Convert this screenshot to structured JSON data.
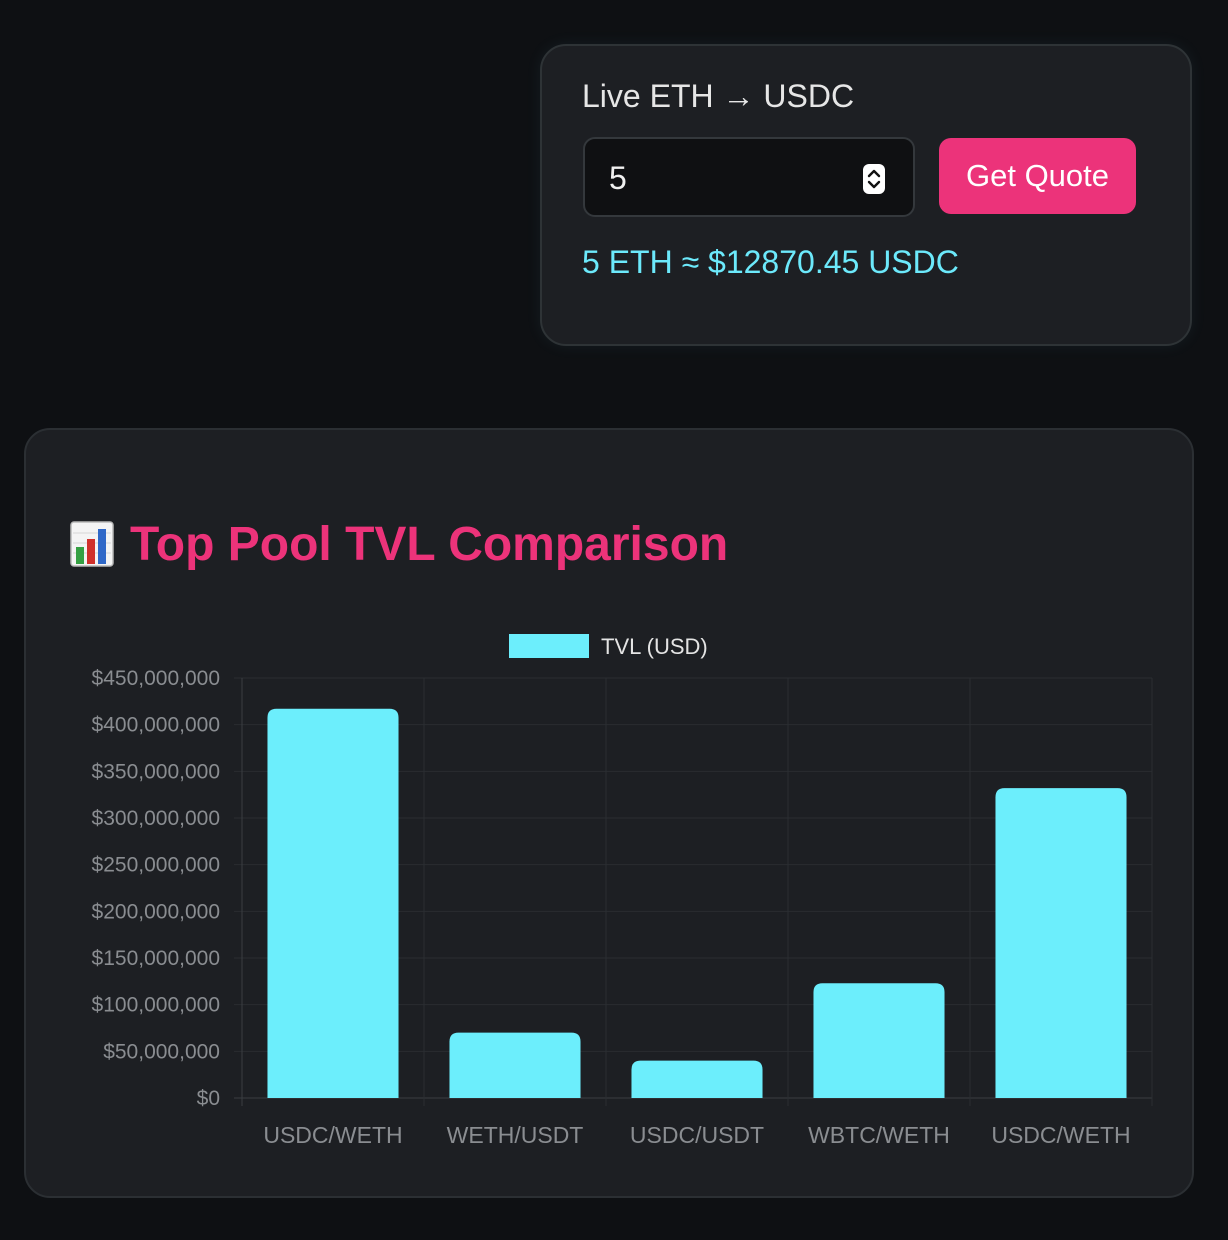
{
  "quote": {
    "title": "Live ETH → USDC",
    "amount": "5",
    "button_label": "Get Quote",
    "result": "5 ETH ≈ $12870.45 USDC"
  },
  "chart_section": {
    "icon": "bar-chart-icon",
    "title": "Top Pool TVL Comparison"
  },
  "colors": {
    "accent": "#ec337a",
    "bar": "#6ceefc",
    "result_text": "#6ce9fb"
  },
  "chart_data": {
    "type": "bar",
    "categories": [
      "USDC/WETH",
      "WETH/USDT",
      "USDC/USDT",
      "WBTC/WETH",
      "USDC/WETH"
    ],
    "series": [
      {
        "name": "TVL (USD)",
        "values": [
          417000000,
          70000000,
          40000000,
          123000000,
          332000000
        ]
      }
    ],
    "yticks": [
      "$0",
      "$50,000,000",
      "$100,000,000",
      "$150,000,000",
      "$200,000,000",
      "$250,000,000",
      "$300,000,000",
      "$350,000,000",
      "$400,000,000",
      "$450,000,000"
    ],
    "ylim": [
      0,
      450000000
    ],
    "grid": true,
    "legend": "top-center"
  }
}
